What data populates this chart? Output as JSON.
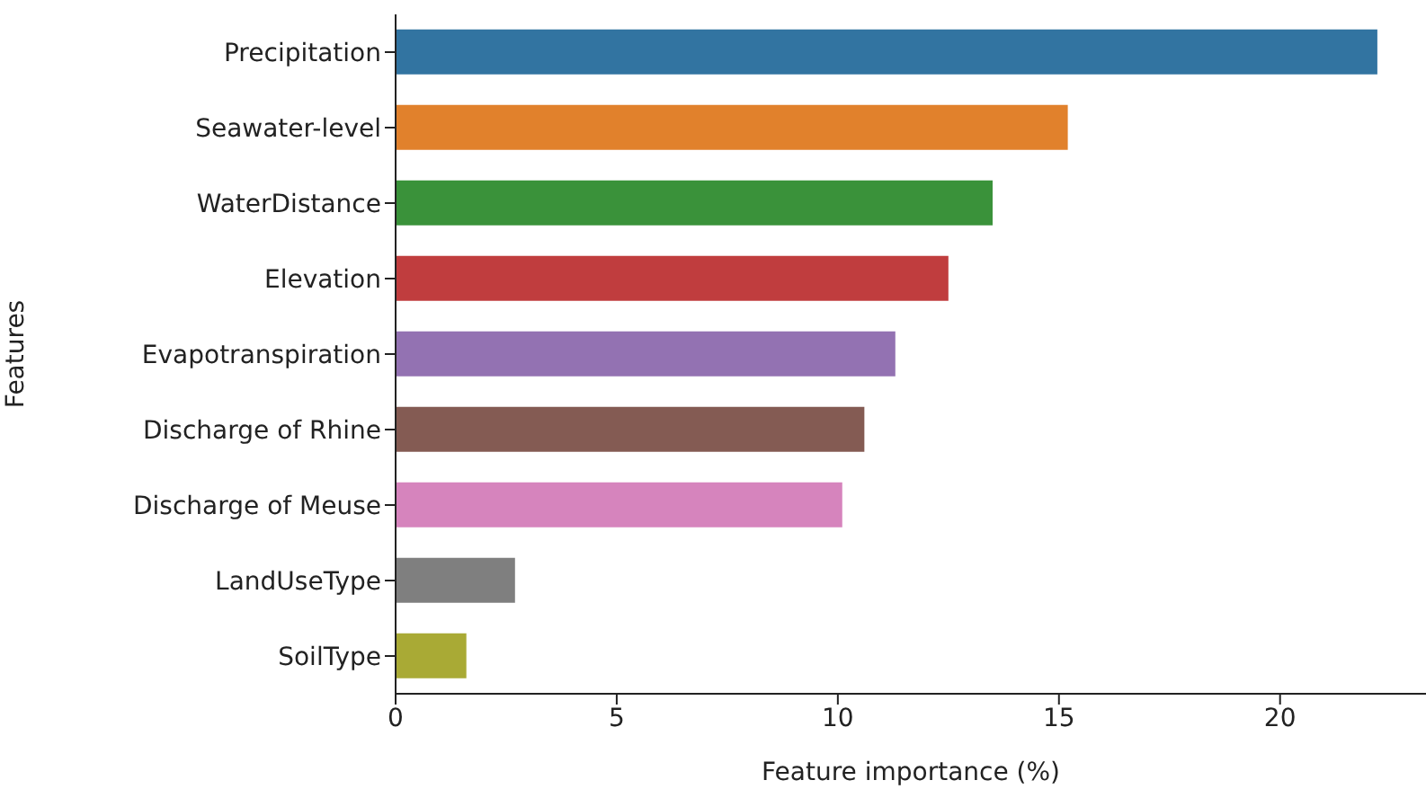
{
  "chart_data": {
    "type": "bar",
    "orientation": "horizontal",
    "xlabel": "Feature importance (%)",
    "ylabel": "Features",
    "categories": [
      "Precipitation",
      "Seawater-level",
      "WaterDistance",
      "Elevation",
      "Evapotranspiration",
      "Discharge of Rhine",
      "Discharge of Meuse",
      "LandUseType",
      "SoilType"
    ],
    "values": [
      22.2,
      15.2,
      13.5,
      12.5,
      11.3,
      10.6,
      10.1,
      2.7,
      1.6
    ],
    "colors": [
      "#3274a1",
      "#e1812c",
      "#3a923a",
      "#c03d3e",
      "#9372b2",
      "#845b53",
      "#d684bd",
      "#7f7f7f",
      "#a9aa35"
    ],
    "xlim": [
      0,
      23.3
    ],
    "xticks": [
      0,
      5,
      10,
      15,
      20
    ],
    "grid": false,
    "legend": false
  }
}
